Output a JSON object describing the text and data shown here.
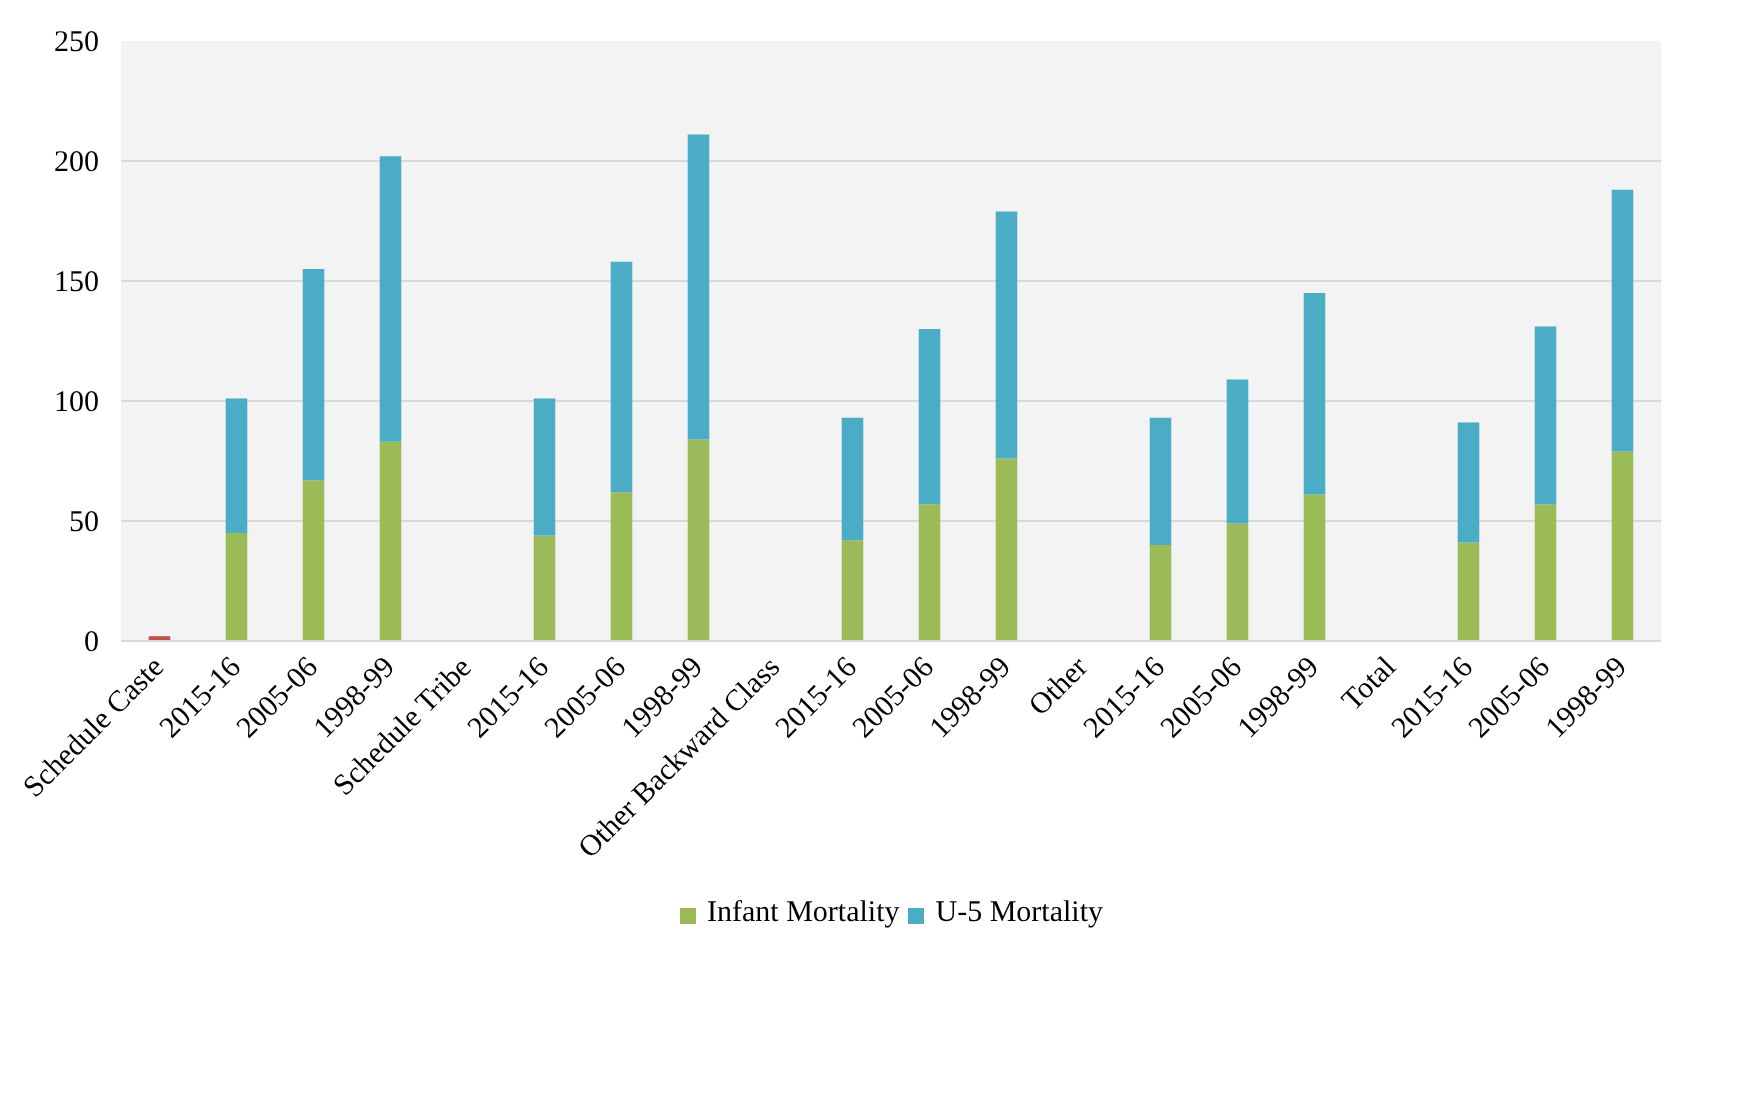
{
  "chart_data": {
    "type": "bar",
    "stacked": true,
    "categories": [
      "Schedule Caste",
      "2015-16",
      "2005-06",
      "1998-99",
      "Schedule Tribe",
      "2015-16",
      "2005-06",
      "1998-99",
      "Other Backward Class",
      "2015-16",
      "2005-06",
      "1998-99",
      "Other",
      "2015-16",
      "2005-06",
      "1998-99",
      "Total",
      "2015-16",
      "2005-06",
      "1998-99"
    ],
    "series": [
      {
        "name": "Infant Mortality",
        "color": "#9bbb59",
        "values": [
          null,
          45,
          67,
          83,
          null,
          44,
          62,
          84,
          null,
          42,
          57,
          76,
          null,
          40,
          49,
          61,
          null,
          41,
          57,
          79
        ]
      },
      {
        "name": "U-5 Mortality",
        "color": "#4bacc6",
        "values": [
          null,
          56,
          88,
          119,
          null,
          57,
          96,
          127,
          null,
          51,
          73,
          103,
          null,
          53,
          60,
          84,
          null,
          50,
          74,
          109
        ]
      },
      {
        "color": "#c0504d",
        "values": [
          2,
          null,
          null,
          null,
          null,
          null,
          null,
          null,
          null,
          null,
          null,
          null,
          null,
          null,
          null,
          null,
          null,
          null,
          null,
          null
        ]
      }
    ],
    "ylim": [
      0,
      250
    ],
    "yticks": [
      0,
      50,
      100,
      150,
      200,
      250
    ],
    "grid": "y",
    "legend": "bottom"
  }
}
